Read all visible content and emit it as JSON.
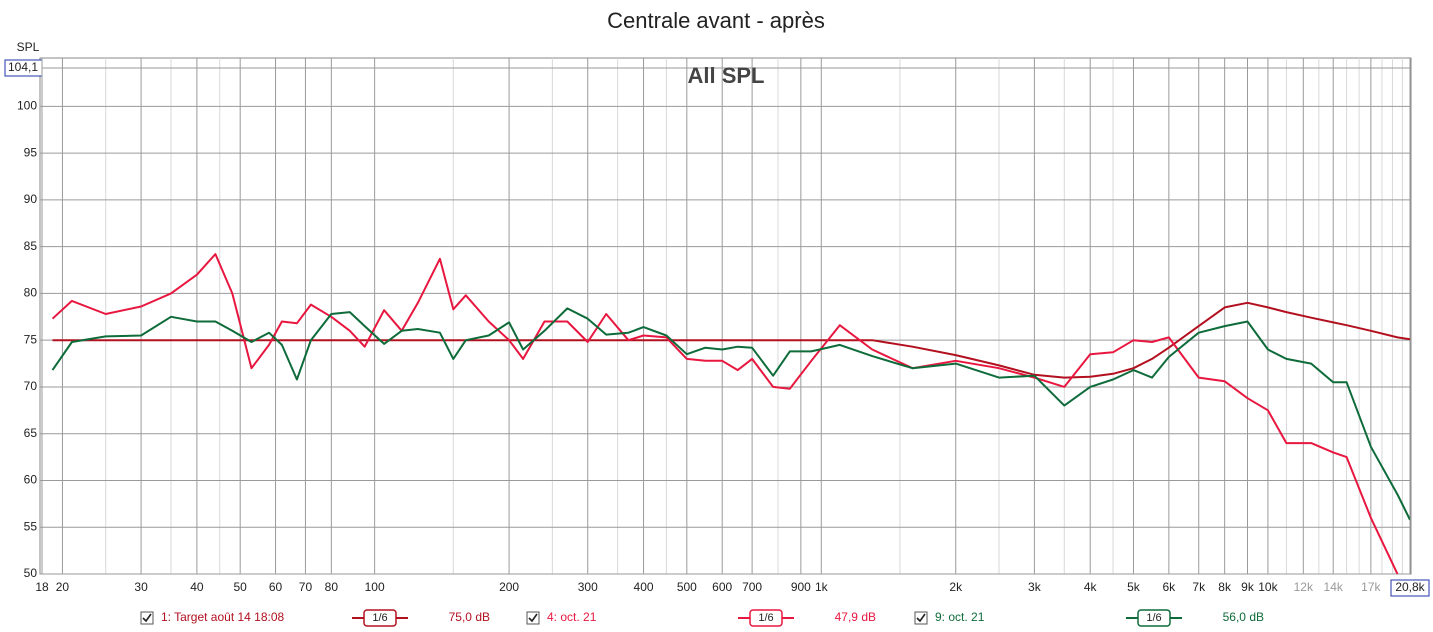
{
  "chart_data": {
    "type": "line",
    "title": "Centrale avant - après",
    "plot_label": "All SPL",
    "y_label": "SPL",
    "x_scale": "log",
    "grid": true,
    "xlim": [
      18,
      20800
    ],
    "ylim": [
      50,
      104.1
    ],
    "xticks": [
      18,
      20,
      30,
      40,
      50,
      60,
      70,
      80,
      100,
      200,
      300,
      400,
      500,
      600,
      700,
      900,
      {
        "value": 1000,
        "label": "1k"
      },
      {
        "value": 2000,
        "label": "2k"
      },
      {
        "value": 3000,
        "label": "3k"
      },
      {
        "value": 4000,
        "label": "4k"
      },
      {
        "value": 5000,
        "label": "5k"
      },
      {
        "value": 6000,
        "label": "6k"
      },
      {
        "value": 7000,
        "label": "7k"
      },
      {
        "value": 8000,
        "label": "8k"
      },
      {
        "value": 9000,
        "label": "9k"
      },
      {
        "value": 10000,
        "label": "10k"
      },
      {
        "value": 12000,
        "label": "12k"
      },
      {
        "value": 14000,
        "label": "14k"
      },
      {
        "value": 17000,
        "label": "17k"
      },
      {
        "value": 20800,
        "label": "20,8k"
      }
    ],
    "x_minor_ticks": [
      25,
      35,
      45,
      150,
      250,
      350,
      450,
      800,
      1500,
      2500,
      3500,
      4500,
      11000,
      13000,
      15000,
      16000,
      18000,
      19000,
      20000
    ],
    "yticks": [
      50,
      55,
      60,
      65,
      70,
      75,
      80,
      85,
      90,
      95,
      100,
      {
        "value": 104.1,
        "label": "104,1"
      }
    ],
    "x": [
      19,
      21,
      25,
      30,
      35,
      40,
      44,
      48,
      53,
      58,
      62,
      67,
      72,
      80,
      88,
      95,
      105,
      115,
      125,
      140,
      150,
      160,
      180,
      200,
      215,
      240,
      270,
      300,
      330,
      370,
      400,
      450,
      500,
      550,
      600,
      650,
      700,
      780,
      850,
      950,
      1100,
      1300,
      1600,
      2000,
      2500,
      3000,
      3500,
      4000,
      4500,
      5000,
      5500,
      6000,
      7000,
      8000,
      9000,
      10000,
      11000,
      12500,
      14000,
      15000,
      17000,
      19500,
      20800
    ],
    "series": [
      {
        "name": "1: Target août 14 18:08",
        "smoothing": "1/6",
        "level": "75,0 dB",
        "color": "#b3101f",
        "values": [
          75,
          75,
          75,
          75,
          75,
          75,
          75,
          75,
          75,
          75,
          75,
          75,
          75,
          75,
          75,
          75,
          75,
          75,
          75,
          75,
          75,
          75,
          75,
          75,
          75,
          75,
          75,
          75,
          75,
          75,
          75,
          75,
          75,
          75,
          75,
          75,
          75,
          75,
          75,
          75,
          75,
          75,
          74.3,
          73.4,
          72.3,
          71.3,
          71,
          71.1,
          71.4,
          72,
          73,
          74.2,
          76.5,
          78.5,
          79,
          78.5,
          78,
          77.4,
          76.9,
          76.6,
          76,
          75.3,
          75.1
        ]
      },
      {
        "name": "4: oct. 21",
        "smoothing": "1/6",
        "level": "47,9 dB",
        "color": "#e8173f",
        "values": [
          77.3,
          79.2,
          77.8,
          78.6,
          80,
          82,
          84.2,
          80,
          72,
          74.5,
          77,
          76.8,
          78.8,
          77.5,
          76,
          74.3,
          78.2,
          76,
          79,
          83.7,
          78.3,
          79.8,
          77,
          75,
          73,
          77,
          77,
          74.8,
          77.8,
          75,
          75.5,
          75.3,
          73,
          72.8,
          72.8,
          71.8,
          73,
          70,
          69.8,
          72.8,
          76.6,
          74,
          72,
          72.8,
          72,
          71,
          70,
          73.5,
          73.7,
          75,
          74.8,
          75.3,
          71,
          70.6,
          68.8,
          67.5,
          64,
          64,
          63,
          62.5,
          56,
          50,
          null
        ]
      },
      {
        "name": "9: oct. 21",
        "smoothing": "1/6",
        "level": "56,0 dB",
        "color": "#0e6b3a",
        "values": [
          71.8,
          74.8,
          75.4,
          75.5,
          77.5,
          77,
          77,
          76,
          74.8,
          75.8,
          74.5,
          70.8,
          75,
          77.8,
          78,
          76.5,
          74.6,
          76,
          76.2,
          75.8,
          73,
          75,
          75.5,
          76.9,
          74,
          76,
          78.4,
          77.3,
          75.6,
          75.8,
          76.4,
          75.5,
          73.5,
          74.2,
          74,
          74.3,
          74.2,
          71.2,
          73.8,
          73.8,
          74.5,
          73.3,
          72,
          72.5,
          71,
          71.2,
          68,
          70,
          70.8,
          71.8,
          71,
          73.2,
          75.8,
          76.5,
          77,
          74,
          73,
          72.5,
          70.5,
          70.5,
          63.6,
          58.5,
          55.8
        ]
      }
    ]
  }
}
